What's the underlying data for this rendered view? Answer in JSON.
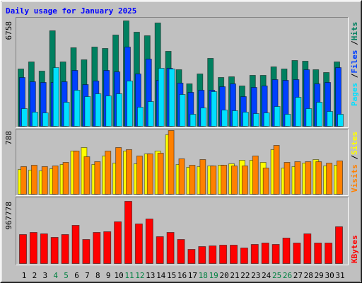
{
  "chart_data": [
    {
      "type": "bar",
      "title": "Daily usage for January 2025",
      "title_color": "#0000ff",
      "ylim": [
        0,
        6758
      ],
      "yticks": [
        6758
      ],
      "series": [
        {
          "name": "Hits",
          "color": "#008060",
          "values": [
            3674,
            4128,
            3538,
            6124,
            4128,
            5035,
            4264,
            5080,
            4990,
            5851,
            6758,
            6033,
            5806,
            6623,
            4808,
            3629,
            2722,
            3357,
            4355,
            3130,
            3175,
            2586,
            3266,
            3266,
            3810,
            3674,
            4218,
            4173,
            3629,
            3447,
            4128
          ]
        },
        {
          "name": "Files",
          "color": "#0040ff",
          "values": [
            3130,
            2858,
            2812,
            2812,
            2858,
            3583,
            2676,
            2903,
            3583,
            3493,
            5080,
            3357,
            4309,
            2948,
            3720,
            2767,
            2177,
            2313,
            2313,
            2540,
            2722,
            1905,
            2495,
            2586,
            2994,
            2948,
            2994,
            3629,
            2722,
            2812,
            3765
          ]
        },
        {
          "name": "Pages",
          "color": "#00e0ff",
          "values": [
            1134,
            907,
            862,
            3765,
            1542,
            2313,
            1905,
            2087,
            1950,
            2087,
            2903,
            1225,
            1588,
            3720,
            3674,
            2041,
            771,
            1179,
            2223,
            1043,
            998,
            907,
            816,
            862,
            1270,
            771,
            1860,
            1134,
            1542,
            953,
            771
          ]
        }
      ],
      "legend_separator": "/"
    },
    {
      "type": "bar",
      "ylim": [
        0,
        788
      ],
      "yticks": [
        788
      ],
      "series": [
        {
          "name": "Sites",
          "color": "#ffff00",
          "values": [
            307,
            298,
            289,
            315,
            368,
            534,
            578,
            368,
            473,
            385,
            534,
            377,
            499,
            534,
            736,
            368,
            333,
            342,
            350,
            359,
            377,
            420,
            420,
            394,
            552,
            324,
            342,
            385,
            429,
            350,
            359
          ]
        },
        {
          "name": "Visits",
          "color": "#ff8000",
          "values": [
            342,
            359,
            342,
            350,
            394,
            534,
            464,
            403,
            534,
            578,
            552,
            473,
            499,
            508,
            788,
            438,
            359,
            429,
            350,
            359,
            350,
            350,
            473,
            324,
            604,
            394,
            403,
            403,
            403,
            385,
            412
          ]
        }
      ],
      "legend_separator": "/"
    },
    {
      "type": "bar",
      "ylim": [
        0,
        967778
      ],
      "yticks": [
        967778
      ],
      "categories": [
        "1",
        "2",
        "3",
        "4",
        "5",
        "6",
        "7",
        "8",
        "9",
        "10",
        "11",
        "12",
        "13",
        "14",
        "15",
        "16",
        "17",
        "18",
        "19",
        "20",
        "21",
        "22",
        "23",
        "24",
        "25",
        "26",
        "27",
        "28",
        "29",
        "30",
        "31"
      ],
      "weekend_categories": [
        "4",
        "5",
        "11",
        "12",
        "18",
        "19",
        "25",
        "26"
      ],
      "weekend_color": "#008040",
      "category_color": "#000000",
      "series": [
        {
          "name": "KBytes",
          "color": "#ff0000",
          "values": [
            450918,
            483912,
            461916,
            406926,
            450918,
            593892,
            373932,
            483912,
            494910,
            648882,
            967778,
            615888,
            692874,
            417924,
            483912,
            373932,
            219960,
            263952,
            274950,
            285948,
            285948,
            241956,
            296946,
            318942,
            296946,
            395928,
            318942,
            461916,
            318942,
            318942,
            571896
          ]
        }
      ]
    }
  ]
}
